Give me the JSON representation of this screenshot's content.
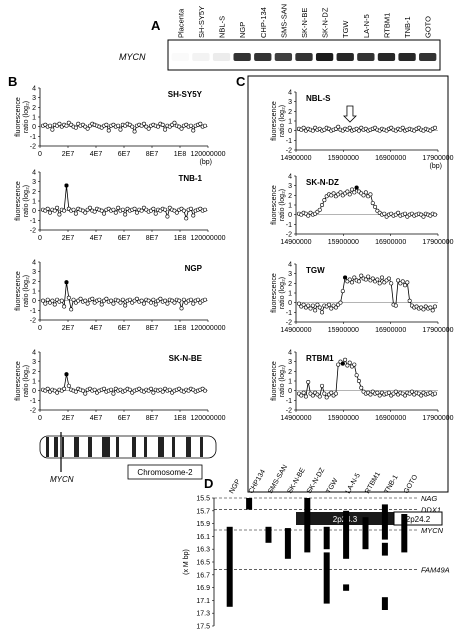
{
  "panelA": {
    "letter": "A",
    "lanes": [
      "Placenta",
      "SH-SY5Y",
      "NBL-S",
      "NGP",
      "CHP-134",
      "SMS-SAN",
      "SK-N-BE",
      "SK-N-DZ",
      "TGW",
      "LA-N-5",
      "RTBM1",
      "TNB-1",
      "GOTO"
    ],
    "row_label": "MYCN",
    "band_intensity": [
      0.02,
      0.05,
      0.08,
      0.85,
      0.85,
      0.8,
      0.85,
      0.95,
      0.9,
      0.85,
      0.9,
      0.9,
      0.85
    ]
  },
  "panelB": {
    "letter": "B",
    "ylabel": "fluorescence ratio (log₂)",
    "xticks": [
      "0",
      "2E7",
      "4E7",
      "6E7",
      "8E7",
      "1E8",
      "120000000"
    ],
    "xunit": "(bp)",
    "yticks": [
      "4",
      "3",
      "2",
      "1",
      "0",
      "-1",
      "-2"
    ],
    "ylim": [
      -2,
      4
    ],
    "chromosome_label": "Chromosome-2",
    "gene_label": "MYCN",
    "plots": [
      {
        "name": "SH-SY5Y"
      },
      {
        "name": "TNB-1"
      },
      {
        "name": "NGP"
      },
      {
        "name": "SK-N-BE"
      }
    ]
  },
  "panelC": {
    "letter": "C",
    "ylabel": "fluorescence ratio (log₂)",
    "xticks": [
      "14900000",
      "15900000",
      "16900000",
      "17900000"
    ],
    "xunit": "(bp)",
    "yticks": [
      "4",
      "3",
      "2",
      "1",
      "0",
      "-1",
      "-2"
    ],
    "ylim": [
      -2,
      4
    ],
    "plots": [
      {
        "name": "NBL-S"
      },
      {
        "name": "SK-N-DZ"
      },
      {
        "name": "TGW"
      },
      {
        "name": "RTBM1"
      }
    ],
    "band_left": "2p24.3",
    "band_right": "2p24.2"
  },
  "panelD": {
    "letter": "D",
    "ylabel": "(x M bp)",
    "yticks": [
      "15.5",
      "15.7",
      "15.9",
      "16.1",
      "16.3",
      "16.5",
      "16.7",
      "16.9",
      "17.1",
      "17.3",
      "17.5"
    ],
    "ylim": [
      15.5,
      17.5
    ],
    "lines": [
      {
        "label": "NAG",
        "y": 15.5
      },
      {
        "label": "DDX1",
        "y": 15.68
      },
      {
        "label": "MYCN",
        "y": 16.0
      },
      {
        "label": "FAM49A",
        "y": 16.62
      }
    ],
    "lanes": [
      {
        "name": "NGP",
        "segments": [
          [
            15.95,
            17.2
          ]
        ]
      },
      {
        "name": "CHP134",
        "segments": [
          [
            15.5,
            15.68
          ]
        ]
      },
      {
        "name": "SMS-SAN",
        "segments": [
          [
            15.95,
            16.2
          ]
        ]
      },
      {
        "name": "SK-N-BE",
        "segments": [
          [
            15.97,
            16.45
          ]
        ]
      },
      {
        "name": "SK-N-DZ",
        "segments": [
          [
            15.5,
            16.35
          ]
        ]
      },
      {
        "name": "TGW",
        "segments": [
          [
            15.95,
            16.3
          ],
          [
            16.35,
            17.15
          ]
        ]
      },
      {
        "name": "LA-N-5",
        "segments": [
          [
            15.7,
            16.45
          ],
          [
            16.85,
            16.95
          ]
        ]
      },
      {
        "name": "RTBM1",
        "segments": [
          [
            15.8,
            16.3
          ]
        ]
      },
      {
        "name": "TNB-1",
        "segments": [
          [
            15.6,
            16.15
          ],
          [
            16.2,
            16.4
          ],
          [
            17.05,
            17.25
          ]
        ]
      },
      {
        "name": "GOTO",
        "segments": [
          [
            15.75,
            16.35
          ]
        ]
      }
    ]
  },
  "chart_data": [
    {
      "type": "line",
      "title": "SH-SY5Y",
      "xlabel": "(bp)",
      "ylabel": "fluorescence ratio (log₂)",
      "xlim": [
        0,
        120000000
      ],
      "ylim": [
        -2,
        4
      ],
      "series": [
        {
          "values": [
            0.1,
            0.2,
            0.0,
            0.1,
            -0.3,
            0.2,
            0.1,
            0.3,
            0.0,
            0.2,
            0.1,
            0.4,
            0.2,
            0.0,
            -0.1,
            0.3,
            0.1,
            0.2,
            0.0,
            -0.2,
            0.1,
            0.3,
            0.2,
            0.1,
            0.0,
            -0.1,
            0.1,
            0.2,
            -0.4,
            0.1,
            0.2,
            0.0,
            0.1,
            -0.3,
            0.2,
            0.1,
            0.3,
            0.2,
            0.0,
            -0.5,
            0.1,
            0.2,
            0.1,
            0.3,
            0.0,
            -0.2,
            0.1,
            0.2,
            0.1,
            0.0,
            0.3,
            0.2,
            -0.3,
            0.1,
            0.0,
            0.2,
            0.4,
            0.1,
            0.0,
            -0.2,
            0.1,
            0.2,
            0.0,
            0.1,
            -0.4,
            0.1,
            0.2,
            0.3,
            0.0,
            0.1
          ]
        }
      ]
    },
    {
      "type": "line",
      "title": "TNB-1",
      "xlabel": "(bp)",
      "ylabel": "fluorescence ratio (log₂)",
      "xlim": [
        0,
        120000000
      ],
      "ylim": [
        -2,
        4
      ],
      "series": [
        {
          "values": [
            0.1,
            0.0,
            0.2,
            -0.2,
            0.1,
            0.0,
            0.3,
            -0.4,
            0.1,
            0.0,
            2.6,
            0.2,
            0.0,
            0.1,
            -0.3,
            0.2,
            0.1,
            0.0,
            -0.2,
            0.1,
            0.3,
            0.0,
            -0.1,
            0.2,
            0.1,
            0.0,
            -0.3,
            0.1,
            0.2,
            0.0,
            0.1,
            -0.2,
            0.3,
            0.0,
            0.1,
            -0.4,
            0.2,
            0.0,
            0.1,
            0.2,
            -0.2,
            0.1,
            0.0,
            0.3,
            0.1,
            -0.1,
            0.0,
            0.2,
            -0.3,
            0.1,
            0.0,
            0.2,
            0.1,
            -0.6,
            0.3,
            0.1,
            0.0,
            -0.2,
            0.1,
            0.2,
            0.0,
            -0.8,
            0.1,
            0.2,
            -0.5,
            0.0,
            0.1,
            0.2,
            0.0,
            0.1
          ]
        }
      ]
    },
    {
      "type": "line",
      "title": "NGP",
      "xlabel": "(bp)",
      "ylabel": "fluorescence ratio (log₂)",
      "xlim": [
        0,
        120000000
      ],
      "ylim": [
        -2,
        4
      ],
      "series": [
        {
          "values": [
            0.0,
            -0.3,
            0.1,
            -0.2,
            0.0,
            -0.4,
            0.1,
            -0.1,
            0.0,
            -0.6,
            1.9,
            0.3,
            -0.9,
            0.1,
            -0.2,
            0.0,
            0.2,
            -0.1,
            0.0,
            -0.3,
            0.1,
            0.2,
            -0.2,
            0.0,
            0.1,
            -0.4,
            0.0,
            0.2,
            -0.1,
            0.0,
            -0.3,
            0.1,
            0.0,
            -0.2,
            0.1,
            -0.5,
            0.0,
            0.1,
            -0.2,
            0.0,
            0.2,
            -0.1,
            0.0,
            -0.3,
            0.1,
            0.0,
            -0.2,
            0.1,
            -0.4,
            0.0,
            0.2,
            -0.1,
            0.0,
            -0.3,
            0.1,
            0.0,
            -0.2,
            0.1,
            0.0,
            -0.8,
            0.1,
            -0.2,
            0.0,
            0.1,
            -0.3,
            0.0,
            0.1,
            -0.2,
            0.0,
            0.1
          ]
        }
      ]
    },
    {
      "type": "line",
      "title": "SK-N-BE",
      "xlabel": "(bp)",
      "ylabel": "fluorescence ratio (log₂)",
      "xlim": [
        0,
        120000000
      ],
      "ylim": [
        -2,
        4
      ],
      "series": [
        {
          "values": [
            0.1,
            0.0,
            0.2,
            -0.1,
            0.1,
            0.0,
            -0.2,
            0.1,
            0.0,
            0.2,
            1.7,
            0.5,
            0.1,
            0.0,
            -0.1,
            0.2,
            0.1,
            0.0,
            -0.3,
            0.1,
            0.2,
            0.0,
            0.1,
            -0.2,
            0.0,
            0.1,
            0.2,
            -0.1,
            0.0,
            0.1,
            -0.3,
            0.2,
            0.0,
            0.1,
            -0.1,
            0.0,
            0.2,
            0.1,
            -0.2,
            0.0,
            0.1,
            0.2,
            0.0,
            -0.1,
            0.1,
            0.0,
            0.2,
            -0.2,
            0.1,
            0.0,
            0.1,
            -0.1,
            0.2,
            0.0,
            0.1,
            -0.2,
            0.0,
            0.1,
            0.2,
            0.0,
            -0.1,
            0.1,
            0.0,
            0.2,
            0.1,
            -0.1,
            0.0,
            0.1,
            0.2,
            0.0
          ]
        }
      ]
    },
    {
      "type": "line",
      "title": "NBL-S",
      "xlabel": "(bp)",
      "ylabel": "fluorescence ratio (log₂)",
      "xlim": [
        14900000,
        17900000
      ],
      "ylim": [
        -2,
        4
      ],
      "series": [
        {
          "values": [
            0.2,
            0.1,
            0.3,
            0.0,
            0.2,
            0.1,
            0.0,
            0.3,
            0.1,
            0.2,
            0.0,
            0.1,
            0.3,
            0.2,
            0.0,
            0.1,
            0.2,
            0.4,
            0.1,
            0.0,
            0.2,
            0.1,
            0.3,
            0.0,
            0.1,
            0.2,
            0.0,
            0.3,
            0.1,
            0.2,
            0.0,
            0.1,
            0.2,
            0.3,
            0.1,
            0.0,
            0.2,
            0.1,
            0.0,
            0.2,
            0.3,
            0.1,
            0.0,
            0.2,
            0.1,
            0.3,
            0.0,
            0.1,
            0.2,
            0.1,
            0.0,
            0.2,
            0.3,
            0.1,
            0.0,
            0.2,
            0.1,
            0.0,
            0.2,
            0.3
          ]
        }
      ]
    },
    {
      "type": "line",
      "title": "SK-N-DZ",
      "xlabel": "(bp)",
      "ylabel": "fluorescence ratio (log₂)",
      "xlim": [
        14900000,
        17900000
      ],
      "ylim": [
        -2,
        4
      ],
      "series": [
        {
          "values": [
            0.1,
            0.0,
            0.2,
            0.1,
            -0.1,
            0.2,
            0.0,
            0.1,
            0.3,
            0.5,
            1.0,
            1.5,
            1.9,
            2.1,
            2.0,
            2.2,
            1.9,
            2.1,
            2.3,
            2.0,
            2.2,
            2.4,
            2.1,
            2.6,
            2.3,
            2.8,
            2.4,
            2.2,
            2.0,
            2.3,
            1.9,
            2.1,
            1.2,
            0.8,
            0.4,
            0.2,
            0.0,
            0.1,
            -0.2,
            0.0,
            0.1,
            -0.1,
            0.0,
            0.2,
            -0.1,
            0.0,
            0.1,
            -0.2,
            0.0,
            0.1,
            -0.1,
            0.0,
            0.1,
            0.0,
            -0.2,
            0.1,
            0.0,
            -0.1,
            0.1,
            0.0
          ]
        }
      ]
    },
    {
      "type": "line",
      "title": "TGW",
      "xlabel": "(bp)",
      "ylabel": "fluorescence ratio (log₂)",
      "xlim": [
        14900000,
        17900000
      ],
      "ylim": [
        -2,
        4
      ],
      "series": [
        {
          "values": [
            -0.1,
            -0.4,
            -0.2,
            -0.5,
            -0.3,
            -0.6,
            -0.3,
            -0.8,
            -0.2,
            -0.5,
            -1.0,
            -0.3,
            -0.4,
            -0.2,
            -0.6,
            -0.3,
            -0.5,
            -0.2,
            0.0,
            1.2,
            2.6,
            2.2,
            2.4,
            2.1,
            2.6,
            2.3,
            2.2,
            2.8,
            2.5,
            2.4,
            2.7,
            2.3,
            2.5,
            2.2,
            2.4,
            2.0,
            2.6,
            2.1,
            2.3,
            2.5,
            2.0,
            -0.2,
            -0.3,
            2.3,
            2.0,
            2.2,
            1.8,
            2.1,
            0.2,
            -0.3,
            -0.5,
            -0.4,
            -0.6,
            -0.5,
            -0.7,
            -0.4,
            -0.6,
            -0.5,
            -0.8,
            -0.4
          ]
        }
      ]
    },
    {
      "type": "line",
      "title": "RTBM1",
      "xlabel": "(bp)",
      "ylabel": "fluorescence ratio (log₂)",
      "xlim": [
        14900000,
        17900000
      ],
      "ylim": [
        -2,
        4
      ],
      "series": [
        {
          "values": [
            -0.3,
            -0.5,
            -0.2,
            -0.6,
            0.9,
            -0.3,
            -0.5,
            -0.2,
            -0.4,
            -0.6,
            0.5,
            -0.3,
            -0.7,
            -0.4,
            -0.2,
            -0.5,
            -0.3,
            2.7,
            3.0,
            2.8,
            3.2,
            2.6,
            2.9,
            2.5,
            2.7,
            1.6,
            1.0,
            0.3,
            -0.1,
            -0.3,
            -0.2,
            -0.4,
            -0.1,
            -0.3,
            -0.2,
            -0.5,
            -0.2,
            -0.4,
            -0.3,
            -0.2,
            -0.5,
            -0.3,
            -0.1,
            -0.4,
            -0.2,
            -0.3,
            -0.5,
            -0.2,
            -0.3,
            -0.1,
            -0.4,
            -0.2,
            -0.3,
            -0.5,
            -0.2,
            -0.4,
            -0.3,
            -0.2,
            -0.4,
            -0.3
          ]
        }
      ]
    },
    {
      "type": "bar",
      "title": "",
      "ylabel": "(x M bp)",
      "ylim": [
        15.5,
        17.5
      ],
      "categories": [
        "NGP",
        "CHP134",
        "SMS-SAN",
        "SK-N-BE",
        "SK-N-DZ",
        "TGW",
        "LA-N-5",
        "RTBM1",
        "TNB-1",
        "GOTO"
      ],
      "series": [
        {
          "values": [
            [
              15.95,
              17.2
            ],
            [
              15.5,
              15.68
            ],
            [
              15.95,
              16.2
            ],
            [
              15.97,
              16.45
            ],
            [
              15.5,
              16.35
            ],
            [
              15.95,
              17.15
            ],
            [
              15.7,
              16.95
            ],
            [
              15.8,
              16.3
            ],
            [
              15.6,
              17.25
            ],
            [
              15.75,
              16.35
            ]
          ]
        }
      ]
    }
  ]
}
